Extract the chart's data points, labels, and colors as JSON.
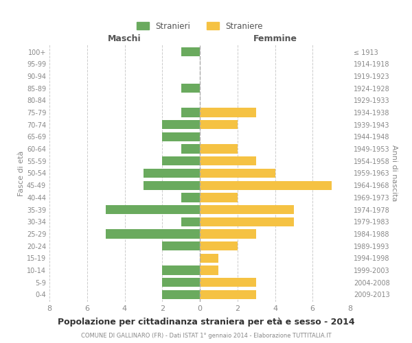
{
  "age_groups": [
    "0-4",
    "5-9",
    "10-14",
    "15-19",
    "20-24",
    "25-29",
    "30-34",
    "35-39",
    "40-44",
    "45-49",
    "50-54",
    "55-59",
    "60-64",
    "65-69",
    "70-74",
    "75-79",
    "80-84",
    "85-89",
    "90-94",
    "95-99",
    "100+"
  ],
  "birth_years": [
    "2009-2013",
    "2004-2008",
    "1999-2003",
    "1994-1998",
    "1989-1993",
    "1984-1988",
    "1979-1983",
    "1974-1978",
    "1969-1973",
    "1964-1968",
    "1959-1963",
    "1954-1958",
    "1949-1953",
    "1944-1948",
    "1939-1943",
    "1934-1938",
    "1929-1933",
    "1924-1928",
    "1919-1923",
    "1914-1918",
    "≤ 1913"
  ],
  "maschi": [
    2,
    2,
    2,
    0,
    2,
    5,
    1,
    5,
    1,
    3,
    3,
    2,
    1,
    2,
    2,
    1,
    0,
    1,
    0,
    0,
    1
  ],
  "femmine": [
    3,
    3,
    1,
    1,
    2,
    3,
    5,
    5,
    2,
    7,
    4,
    3,
    2,
    0,
    2,
    3,
    0,
    0,
    0,
    0,
    0
  ],
  "maschi_color": "#6aaa5e",
  "femmine_color": "#f5c243",
  "grid_color": "#cccccc",
  "title": "Popolazione per cittadinanza straniera per età e sesso - 2014",
  "subtitle": "COMUNE DI GALLINARO (FR) - Dati ISTAT 1° gennaio 2014 - Elaborazione TUTTITALIA.IT",
  "ylabel_left": "Fasce di età",
  "ylabel_right": "Anni di nascita",
  "label_maschi": "Maschi",
  "label_femmine": "Femmine",
  "legend_maschi": "Stranieri",
  "legend_femmine": "Straniere",
  "xlim": [
    -8,
    8
  ],
  "xticks": [
    -8,
    -6,
    -4,
    -2,
    0,
    2,
    4,
    6,
    8
  ],
  "xticklabels": [
    "8",
    "6",
    "4",
    "2",
    "0",
    "2",
    "4",
    "6",
    "8"
  ]
}
